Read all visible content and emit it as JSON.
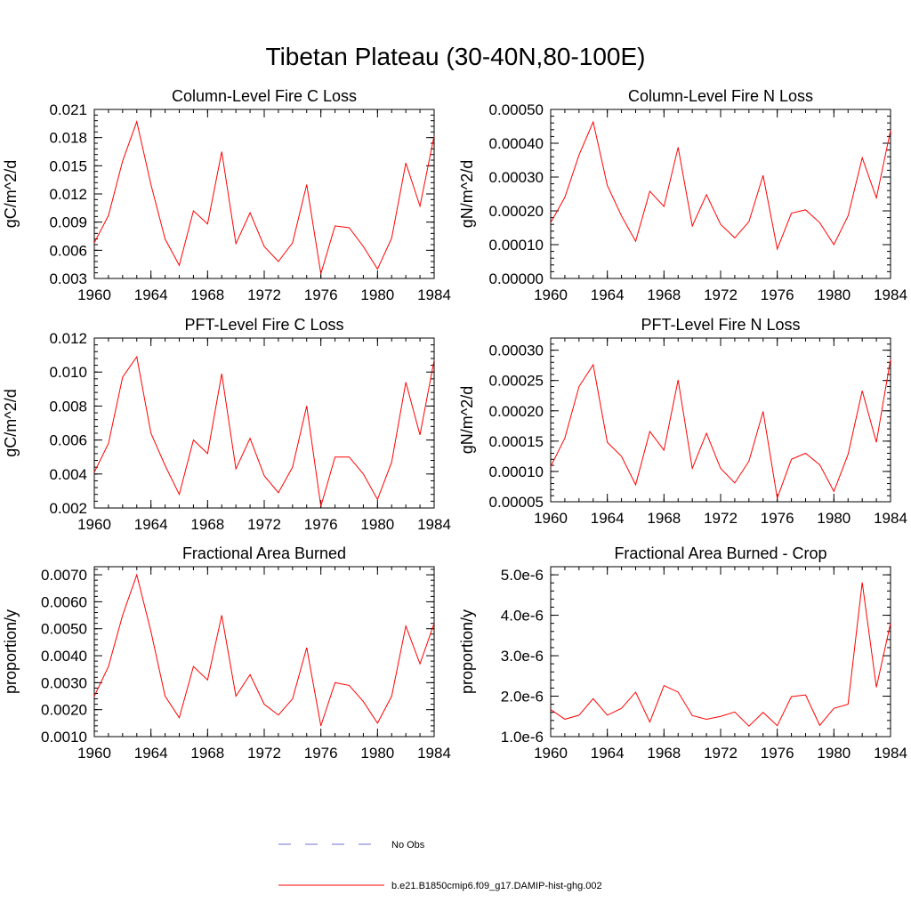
{
  "title": "Tibetan Plateau (30-40N,80-100E)",
  "chart_data": [
    {
      "type": "line",
      "title": "Column-Level Fire C Loss",
      "ylabel": "gC/m^2/d",
      "xlim": [
        1960,
        1984
      ],
      "ylim": [
        0.003,
        0.021
      ],
      "xticks": [
        1960,
        1964,
        1968,
        1972,
        1976,
        1980,
        1984
      ],
      "xtick_labels": [
        "1960",
        "1964",
        "1968",
        "1972",
        "1976",
        "1980",
        "1984"
      ],
      "yticks": [
        0.003,
        0.006,
        0.009,
        0.012,
        0.015,
        0.018,
        0.021
      ],
      "ytick_labels": [
        "0.003",
        "0.006",
        "0.009",
        "0.012",
        "0.015",
        "0.018",
        "0.021"
      ],
      "x": [
        1960,
        1961,
        1962,
        1963,
        1964,
        1965,
        1966,
        1967,
        1968,
        1969,
        1970,
        1971,
        1972,
        1973,
        1974,
        1975,
        1976,
        1977,
        1978,
        1979,
        1980,
        1981,
        1982,
        1983,
        1984
      ],
      "series": [
        {
          "name": "b.e21.B1850cmip6.f09_g17.DAMIP-hist-ghg.002",
          "color": "#ff0000",
          "values": [
            0.0068,
            0.0097,
            0.0155,
            0.0197,
            0.013,
            0.0072,
            0.0044,
            0.0102,
            0.0088,
            0.0165,
            0.0067,
            0.01,
            0.0064,
            0.0048,
            0.0068,
            0.013,
            0.0035,
            0.0086,
            0.0084,
            0.0064,
            0.004,
            0.0073,
            0.0153,
            0.0107,
            0.0182
          ]
        }
      ]
    },
    {
      "type": "line",
      "title": "Column-Level Fire N Loss",
      "ylabel": "gN/m^2/d",
      "xlim": [
        1960,
        1984
      ],
      "ylim": [
        0.0,
        0.0005
      ],
      "xticks": [
        1960,
        1964,
        1968,
        1972,
        1976,
        1980,
        1984
      ],
      "xtick_labels": [
        "1960",
        "1964",
        "1968",
        "1972",
        "1976",
        "1980",
        "1984"
      ],
      "yticks": [
        0.0,
        0.0001,
        0.0002,
        0.0003,
        0.0004,
        0.0005
      ],
      "ytick_labels": [
        "0.00000",
        "0.00010",
        "0.00020",
        "0.00030",
        "0.00040",
        "0.00050"
      ],
      "x": [
        1960,
        1961,
        1962,
        1963,
        1964,
        1965,
        1966,
        1967,
        1968,
        1969,
        1970,
        1971,
        1972,
        1973,
        1974,
        1975,
        1976,
        1977,
        1978,
        1979,
        1980,
        1981,
        1982,
        1983,
        1984
      ],
      "series": [
        {
          "name": "b.e21.B1850cmip6.f09_g17.DAMIP-hist-ghg.002",
          "color": "#ff0000",
          "values": [
            0.000165,
            0.00024,
            0.000365,
            0.000463,
            0.000275,
            0.000185,
            0.00011,
            0.000258,
            0.000213,
            0.000388,
            0.000155,
            0.000248,
            0.00016,
            0.00012,
            0.000168,
            0.000305,
            8.7e-05,
            0.000193,
            0.000203,
            0.000165,
            0.0001,
            0.000185,
            0.000357,
            0.000238,
            0.000438
          ]
        }
      ]
    },
    {
      "type": "line",
      "title": "PFT-Level Fire C Loss",
      "ylabel": "gC/m^2/d",
      "xlim": [
        1960,
        1984
      ],
      "ylim": [
        0.002,
        0.012
      ],
      "xticks": [
        1960,
        1964,
        1968,
        1972,
        1976,
        1980,
        1984
      ],
      "xtick_labels": [
        "1960",
        "1964",
        "1968",
        "1972",
        "1976",
        "1980",
        "1984"
      ],
      "yticks": [
        0.002,
        0.004,
        0.006,
        0.008,
        0.01,
        0.012
      ],
      "ytick_labels": [
        "0.002",
        "0.004",
        "0.006",
        "0.008",
        "0.010",
        "0.012"
      ],
      "x": [
        1960,
        1961,
        1962,
        1963,
        1964,
        1965,
        1966,
        1967,
        1968,
        1969,
        1970,
        1971,
        1972,
        1973,
        1974,
        1975,
        1976,
        1977,
        1978,
        1979,
        1980,
        1981,
        1982,
        1983,
        1984
      ],
      "series": [
        {
          "name": "b.e21.B1850cmip6.f09_g17.DAMIP-hist-ghg.002",
          "color": "#ff0000",
          "values": [
            0.0041,
            0.0058,
            0.0097,
            0.0109,
            0.0064,
            0.0045,
            0.0028,
            0.006,
            0.0052,
            0.0099,
            0.0043,
            0.0061,
            0.0039,
            0.0029,
            0.0044,
            0.008,
            0.0021,
            0.005,
            0.005,
            0.004,
            0.0025,
            0.0047,
            0.0094,
            0.0063,
            0.0107
          ]
        }
      ]
    },
    {
      "type": "line",
      "title": "PFT-Level Fire N Loss",
      "ylabel": "gN/m^2/d",
      "xlim": [
        1960,
        1984
      ],
      "ylim": [
        5e-05,
        0.00032
      ],
      "xticks": [
        1960,
        1964,
        1968,
        1972,
        1976,
        1980,
        1984
      ],
      "xtick_labels": [
        "1960",
        "1964",
        "1968",
        "1972",
        "1976",
        "1980",
        "1984"
      ],
      "yticks": [
        5e-05,
        0.0001,
        0.00015,
        0.0002,
        0.00025,
        0.0003
      ],
      "ytick_labels": [
        "0.00005",
        "0.00010",
        "0.00015",
        "0.00020",
        "0.00025",
        "0.00030"
      ],
      "x": [
        1960,
        1961,
        1962,
        1963,
        1964,
        1965,
        1966,
        1967,
        1968,
        1969,
        1970,
        1971,
        1972,
        1973,
        1974,
        1975,
        1976,
        1977,
        1978,
        1979,
        1980,
        1981,
        1982,
        1983,
        1984
      ],
      "series": [
        {
          "name": "b.e21.B1850cmip6.f09_g17.DAMIP-hist-ghg.002",
          "color": "#ff0000",
          "values": [
            0.000108,
            0.000155,
            0.00024,
            0.000276,
            0.000148,
            0.000125,
            7.8e-05,
            0.000166,
            0.000135,
            0.000251,
            0.000105,
            0.000163,
            0.000105,
            8.1e-05,
            0.000117,
            0.000199,
            5.6e-05,
            0.00012,
            0.00013,
            0.000111,
            6.7e-05,
            0.000128,
            0.000233,
            0.000148,
            0.000285
          ]
        }
      ]
    },
    {
      "type": "line",
      "title": "Fractional Area Burned",
      "ylabel": "proportion/y",
      "xlim": [
        1960,
        1984
      ],
      "ylim": [
        0.001,
        0.0073
      ],
      "xticks": [
        1960,
        1964,
        1968,
        1972,
        1976,
        1980,
        1984
      ],
      "xtick_labels": [
        "1960",
        "1964",
        "1968",
        "1972",
        "1976",
        "1980",
        "1984"
      ],
      "yticks": [
        0.001,
        0.002,
        0.003,
        0.004,
        0.005,
        0.006,
        0.007
      ],
      "ytick_labels": [
        "0.0010",
        "0.0020",
        "0.0030",
        "0.0040",
        "0.0050",
        "0.0060",
        "0.0070"
      ],
      "x": [
        1960,
        1961,
        1962,
        1963,
        1964,
        1965,
        1966,
        1967,
        1968,
        1969,
        1970,
        1971,
        1972,
        1973,
        1974,
        1975,
        1976,
        1977,
        1978,
        1979,
        1980,
        1981,
        1982,
        1983,
        1984
      ],
      "series": [
        {
          "name": "b.e21.B1850cmip6.f09_g17.DAMIP-hist-ghg.002",
          "color": "#ff0000",
          "values": [
            0.0025,
            0.0036,
            0.0055,
            0.007,
            0.0049,
            0.0025,
            0.0017,
            0.0036,
            0.0031,
            0.0055,
            0.0025,
            0.0033,
            0.0022,
            0.0018,
            0.0024,
            0.0043,
            0.0014,
            0.003,
            0.0029,
            0.0023,
            0.0015,
            0.0025,
            0.0051,
            0.0037,
            0.0052
          ]
        }
      ]
    },
    {
      "type": "line",
      "title": "Fractional Area Burned - Crop",
      "ylabel": "proportion/y",
      "xlim": [
        1960,
        1984
      ],
      "ylim": [
        1e-06,
        5.2e-06
      ],
      "xticks": [
        1960,
        1964,
        1968,
        1972,
        1976,
        1980,
        1984
      ],
      "xtick_labels": [
        "1960",
        "1964",
        "1968",
        "1972",
        "1976",
        "1980",
        "1984"
      ],
      "yticks": [
        1e-06,
        2e-06,
        3e-06,
        4e-06,
        5e-06
      ],
      "ytick_labels": [
        "1.0e-6",
        "2.0e-6",
        "3.0e-6",
        "4.0e-6",
        "5.0e-6"
      ],
      "x": [
        1960,
        1961,
        1962,
        1963,
        1964,
        1965,
        1966,
        1967,
        1968,
        1969,
        1970,
        1971,
        1972,
        1973,
        1974,
        1975,
        1976,
        1977,
        1978,
        1979,
        1980,
        1981,
        1982,
        1983,
        1984
      ],
      "series": [
        {
          "name": "b.e21.B1850cmip6.f09_g17.DAMIP-hist-ghg.002",
          "color": "#ff0000",
          "values": [
            1.67e-06,
            1.43e-06,
            1.53e-06,
            1.94e-06,
            1.53e-06,
            1.7e-06,
            2.1e-06,
            1.36e-06,
            2.26e-06,
            2.1e-06,
            1.52e-06,
            1.43e-06,
            1.5e-06,
            1.61e-06,
            1.26e-06,
            1.6e-06,
            1.27e-06,
            1.99e-06,
            2.03e-06,
            1.28e-06,
            1.7e-06,
            1.8e-06,
            4.81e-06,
            2.22e-06,
            3.8e-06
          ]
        }
      ]
    }
  ],
  "legend": [
    {
      "label": "No Obs",
      "color": "#6f6fd8",
      "style": "dashed"
    },
    {
      "label": "b.e21.B1850cmip6.f09_g17.DAMIP-hist-ghg.002",
      "color": "#ff0000",
      "style": "solid"
    }
  ]
}
